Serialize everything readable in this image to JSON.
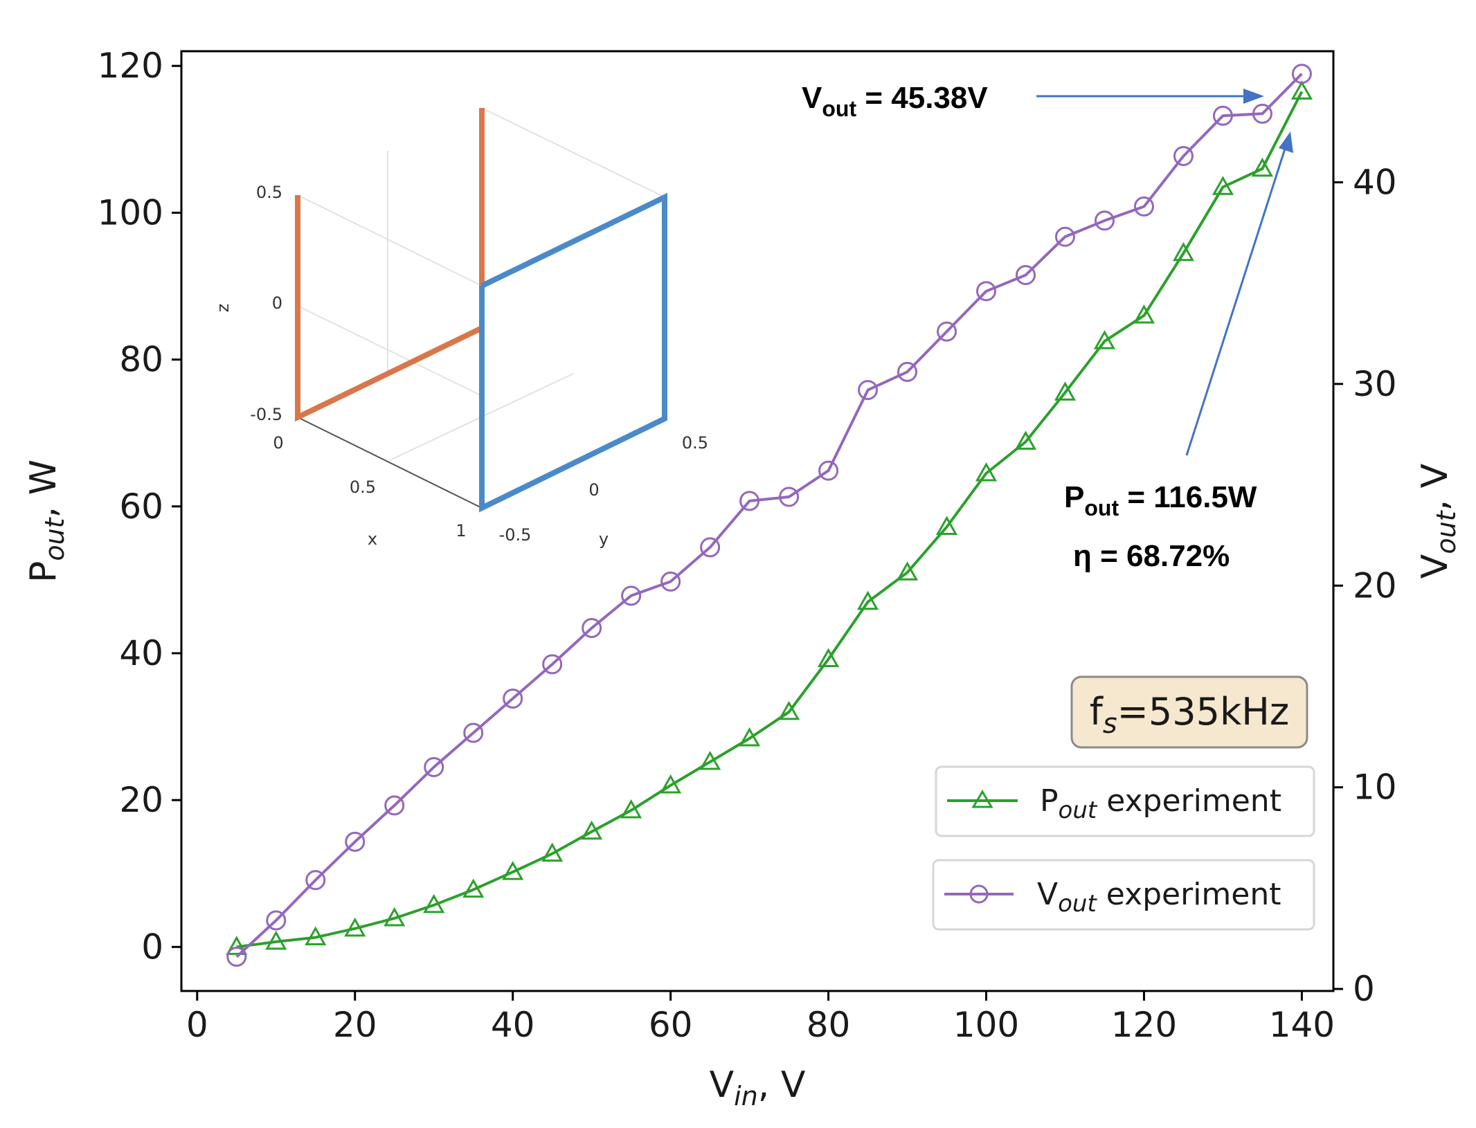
{
  "chart_data": {
    "type": "line",
    "xlabel": {
      "main": "V",
      "sub": "in",
      "suffix": ", V"
    },
    "ylabel_left": {
      "main": "P",
      "sub": "out",
      "suffix": ", W"
    },
    "ylabel_right": {
      "main": "V",
      "sub": "out",
      "suffix": ", V"
    },
    "xlim": [
      -2,
      144
    ],
    "ylim_left": [
      -6,
      122
    ],
    "ylim_right": [
      -0.1,
      46.5
    ],
    "xticks": [
      0,
      20,
      40,
      60,
      80,
      100,
      120,
      140
    ],
    "yticks_left": [
      0,
      20,
      40,
      60,
      80,
      100,
      120
    ],
    "yticks_right": [
      0,
      10,
      20,
      30,
      40
    ],
    "x": [
      5,
      10,
      15,
      20,
      25,
      30,
      35,
      40,
      45,
      50,
      55,
      60,
      65,
      70,
      75,
      80,
      85,
      90,
      95,
      100,
      105,
      110,
      115,
      120,
      125,
      130,
      135,
      140
    ],
    "series": [
      {
        "name": "P_out experiment",
        "axis": "left",
        "color": "#2ca02c",
        "marker": "triangle",
        "values": [
          0,
          0.7,
          1.3,
          2.5,
          3.9,
          5.7,
          7.8,
          10.2,
          12.7,
          15.7,
          18.6,
          22.0,
          25.2,
          28.4,
          32.0,
          39.2,
          47.0,
          51.0,
          57.2,
          64.5,
          68.8,
          75.5,
          82.5,
          86.0,
          94.5,
          103.5,
          106.0,
          116.5
        ]
      },
      {
        "name": "V_out experiment",
        "axis": "right",
        "color": "#9467bd",
        "marker": "circle",
        "values": [
          1.6,
          3.4,
          5.4,
          7.3,
          9.1,
          11.0,
          12.7,
          14.4,
          16.1,
          17.9,
          19.5,
          20.2,
          21.9,
          24.2,
          24.4,
          25.7,
          29.7,
          30.6,
          32.6,
          34.6,
          35.4,
          37.3,
          38.1,
          38.8,
          41.3,
          43.3,
          43.4,
          45.38
        ]
      }
    ],
    "legend": {
      "placement": "lower-right",
      "entries": [
        {
          "main": "P",
          "sub": "out",
          "suffix": " experiment"
        },
        {
          "main": "V",
          "sub": "out",
          "suffix": " experiment"
        }
      ]
    },
    "annotations": {
      "vout": {
        "main": "V",
        "sub": "out",
        "suffix": " = 45.38V"
      },
      "pout": {
        "main": "P",
        "sub": "out",
        "suffix": " = 116.5W"
      },
      "eta": "η = 68.72%",
      "freq": {
        "main": "f",
        "sub": "s",
        "suffix": "=535kHz"
      }
    },
    "inset": {
      "type": "3d-line",
      "xlabel": "x",
      "ylabel": "y",
      "zlabel": "z",
      "z_ticks": [
        "0.5",
        "0",
        "-0.5"
      ],
      "x_ticks": [
        "0",
        "0.5",
        "1"
      ],
      "y_ticks": [
        "-0.5",
        "0",
        "0.5"
      ],
      "colors": {
        "orange": "#d9774b",
        "blue": "#4a8ac9"
      }
    }
  }
}
